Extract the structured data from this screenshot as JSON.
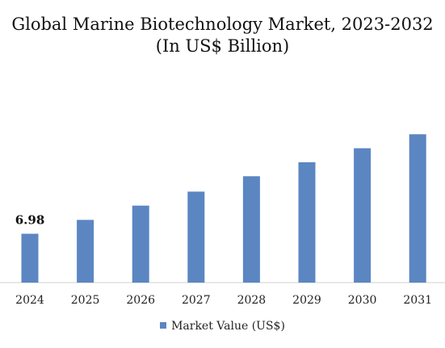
{
  "chart_data": {
    "type": "bar",
    "title_line1": "Global Marine Biotechnology Market, 2023-2032",
    "title_line2": "(In US$ Billion)",
    "categories": [
      "2024",
      "2025",
      "2026",
      "2027",
      "2028",
      "2029",
      "2030",
      "2031"
    ],
    "series": [
      {
        "name": "Market Value (US$)",
        "values": [
          6.98,
          8.96,
          11.0,
          13.0,
          15.2,
          17.2,
          19.2,
          21.2
        ],
        "data_labels": [
          "6.98",
          "",
          "",
          "",
          "",
          "",
          "",
          ""
        ]
      }
    ],
    "ylim": [
      0,
      24
    ],
    "grid": false,
    "legend": "bottom",
    "bar_color": "#5b86c2"
  }
}
